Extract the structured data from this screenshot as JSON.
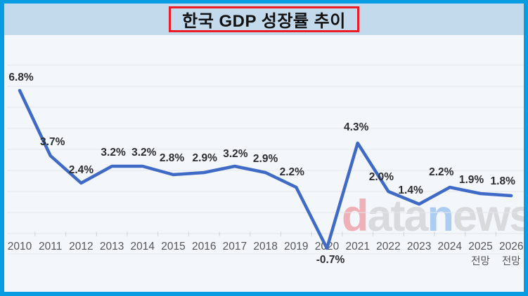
{
  "frame": {
    "border_color": "#089ce3",
    "header_bg": "#c3d9ec",
    "chart_bg": "#f3f7fb"
  },
  "title": {
    "text": "한국 GDP 성장률 추이",
    "box_border_color": "#ed1c24",
    "text_color": "#121212"
  },
  "watermark": {
    "segments": [
      {
        "text": "d",
        "color": "#efb1b7"
      },
      {
        "text": "ata",
        "color": "#d8dade"
      },
      {
        "text": "n",
        "color": "#accdf1"
      },
      {
        "text": "ews",
        "color": "#d8dade"
      }
    ]
  },
  "chart_data": {
    "type": "line",
    "title": "한국 GDP 성장률 추이",
    "categories": [
      "2010",
      "2011",
      "2012",
      "2013",
      "2014",
      "2015",
      "2016",
      "2017",
      "2018",
      "2019",
      "2020",
      "2021",
      "2022",
      "2023",
      "2024",
      "2025",
      "2026"
    ],
    "values": [
      6.8,
      3.7,
      2.4,
      3.2,
      3.2,
      2.8,
      2.9,
      3.2,
      2.9,
      2.2,
      -0.7,
      4.3,
      2.0,
      1.4,
      2.2,
      1.9,
      1.8
    ],
    "data_labels": [
      "6.8%",
      "3.7%",
      "2.4%",
      "3.2%",
      "3.2%",
      "2.8%",
      "2.9%",
      "3.2%",
      "2.9%",
      "2.2%",
      "-0.7%",
      "4.3%",
      "2.0%",
      "1.4%",
      "2.2%",
      "1.9%",
      "1.8%"
    ],
    "category_sublabels": [
      "",
      "",
      "",
      "",
      "",
      "",
      "",
      "",
      "",
      "",
      "",
      "",
      "",
      "",
      "",
      "전망",
      "전망"
    ],
    "xlabel": "",
    "ylabel": "",
    "ylim": [
      -1,
      8.3
    ],
    "gridline_values": [
      0,
      1,
      2,
      3,
      4,
      5,
      6,
      7,
      8
    ],
    "grid": true,
    "legend": false,
    "line_color": "#3f6ac6",
    "data_label_color": "#2c2d30",
    "axis_label_color": "#55565a",
    "gridline_color": "#e3e7ec",
    "tick_color": "#ccd1d8"
  }
}
